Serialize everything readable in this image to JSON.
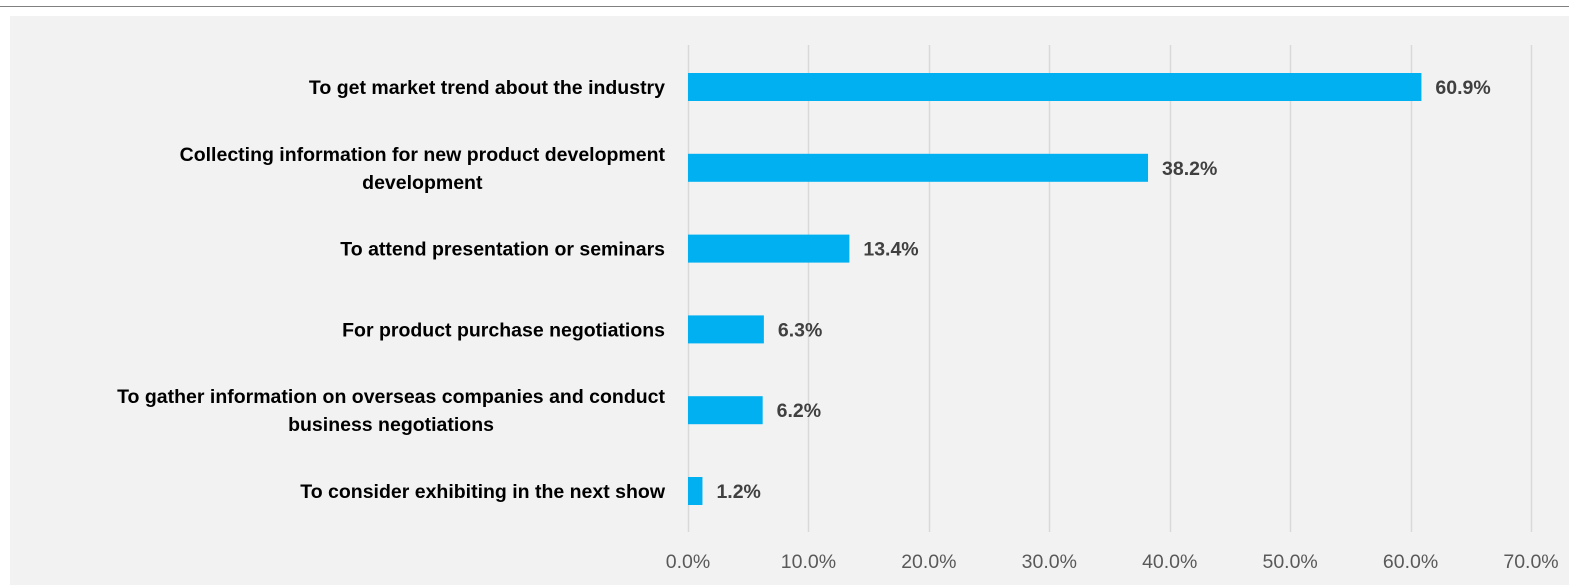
{
  "chart_data": {
    "type": "bar",
    "orientation": "horizontal",
    "categories": [
      [
        "To get market trend about the industry"
      ],
      [
        "Collecting information for new product development",
        "development"
      ],
      [
        "To attend presentation or seminars"
      ],
      [
        "For product purchase negotiations"
      ],
      [
        "To gather information on overseas companies and conduct",
        "business negotiations"
      ],
      [
        "To consider exhibiting in the next show"
      ]
    ],
    "values": [
      60.9,
      38.2,
      13.4,
      6.3,
      6.2,
      1.2
    ],
    "data_labels": [
      "60.9%",
      "38.2%",
      "13.4%",
      "6.3%",
      "6.2%",
      "1.2%"
    ],
    "xlim": [
      0,
      70
    ],
    "xticks": [
      0,
      10,
      20,
      30,
      40,
      50,
      60,
      70
    ],
    "xtick_labels": [
      "0.0%",
      "10.0%",
      "20.0%",
      "30.0%",
      "40.0%",
      "50.0%",
      "60.0%",
      "70.0%"
    ],
    "grid": "vertical",
    "bar_color": "#00b0f0",
    "grid_color": "#d9d9d9",
    "background_color": "#f2f2f2",
    "legend": "none"
  }
}
